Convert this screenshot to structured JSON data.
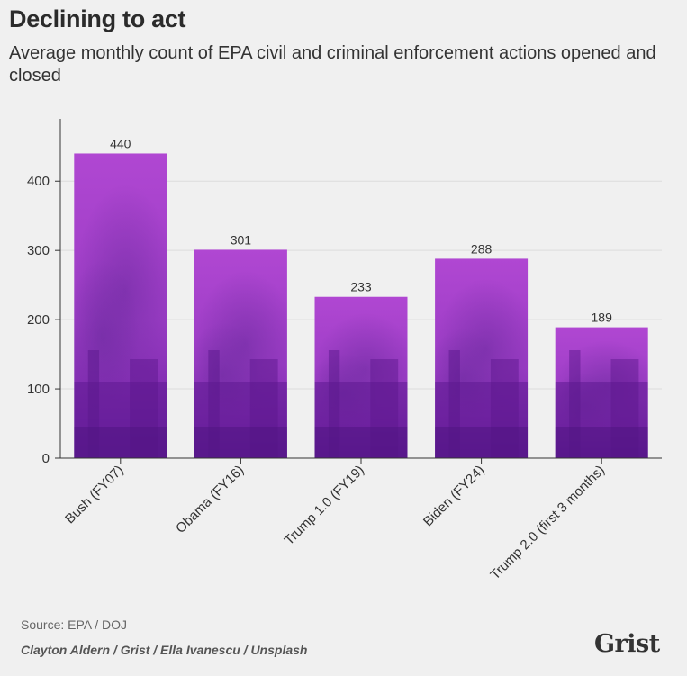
{
  "header": {
    "title": "Declining to act",
    "subtitle": "Average monthly count of EPA civil and criminal enforcement actions opened and closed"
  },
  "footer": {
    "source": "Source: EPA / DOJ",
    "credit": "Clayton Aldern / Grist / Ella Ivanescu / Unsplash",
    "logo": "Grist"
  },
  "chart_data": {
    "type": "bar",
    "title": "Declining to act",
    "subtitle": "Average monthly count of EPA civil and criminal enforcement actions opened and closed",
    "xlabel": "",
    "ylabel": "",
    "categories": [
      "Bush (FY07)",
      "Obama (FY16)",
      "Trump 1.0 (FY19)",
      "Biden (FY24)",
      "Trump 2.0 (first 3 months)"
    ],
    "values": [
      440,
      301,
      233,
      288,
      189
    ],
    "ylim": [
      0,
      490
    ],
    "yticks": [
      0,
      100,
      200,
      300,
      400
    ],
    "grid": true,
    "bar_color": "#a23fc8"
  }
}
